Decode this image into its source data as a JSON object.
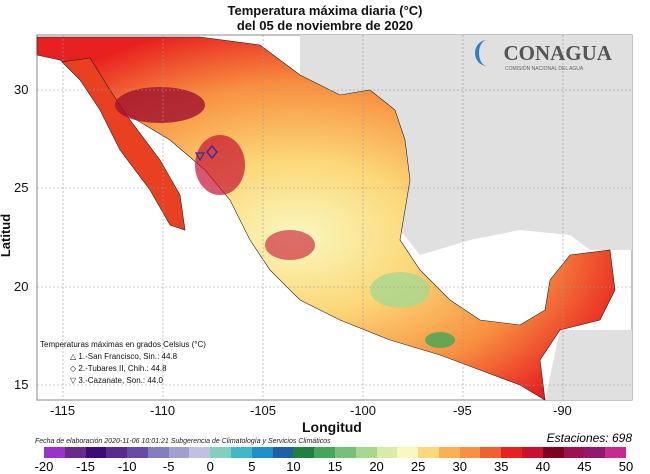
{
  "title": "Temperatura máxima diaria (°C)",
  "subtitle": "del 05 de noviembre de 2020",
  "logo": {
    "name": "CONAGUA",
    "sub": "COMISIÓN NACIONAL DEL AGUA"
  },
  "xlabel": "Longitud",
  "ylabel": "Latitud",
  "xticks": [
    "-115",
    "-110",
    "-105",
    "-100",
    "-95",
    "-90"
  ],
  "yticks": [
    "30",
    "25",
    "20",
    "15"
  ],
  "legend": {
    "title": "Temperaturas máximas en grados Celsius (°C)",
    "items": [
      {
        "symbol": "△",
        "text": "1.-San Francisco, Sin.: 44.8"
      },
      {
        "symbol": "◇",
        "text": "2.-Tubares II, Chih.: 44.8"
      },
      {
        "symbol": "▽",
        "text": "3.-Cazanate, Son.: 44.0"
      }
    ]
  },
  "footer": "Fecha de elaboración 2020-11-06 10:01:21 Subgerencia de Climatología y Servicios Climáticos",
  "stations": "Estaciones:  698",
  "colorbar": {
    "ticks": [
      "-20",
      "-15",
      "-10",
      "-5",
      "0",
      "5",
      "10",
      "15",
      "20",
      "25",
      "30",
      "35",
      "40",
      "45",
      "50"
    ],
    "colors": [
      "#9933cc",
      "#6a2a8a",
      "#3d0a7a",
      "#5a2a90",
      "#6a4aa8",
      "#8080c0",
      "#a0a0d0",
      "#c0c0e0",
      "#80d0c0",
      "#40b8c8",
      "#2090c8",
      "#2060a8",
      "#208040",
      "#40a858",
      "#78c078",
      "#a8d890",
      "#d8eca8",
      "#f8f8c0",
      "#fcd878",
      "#fcb050",
      "#f89040",
      "#f06030",
      "#e82020",
      "#c81030",
      "#800020",
      "#a01050",
      "#901870",
      "#c82890"
    ]
  }
}
